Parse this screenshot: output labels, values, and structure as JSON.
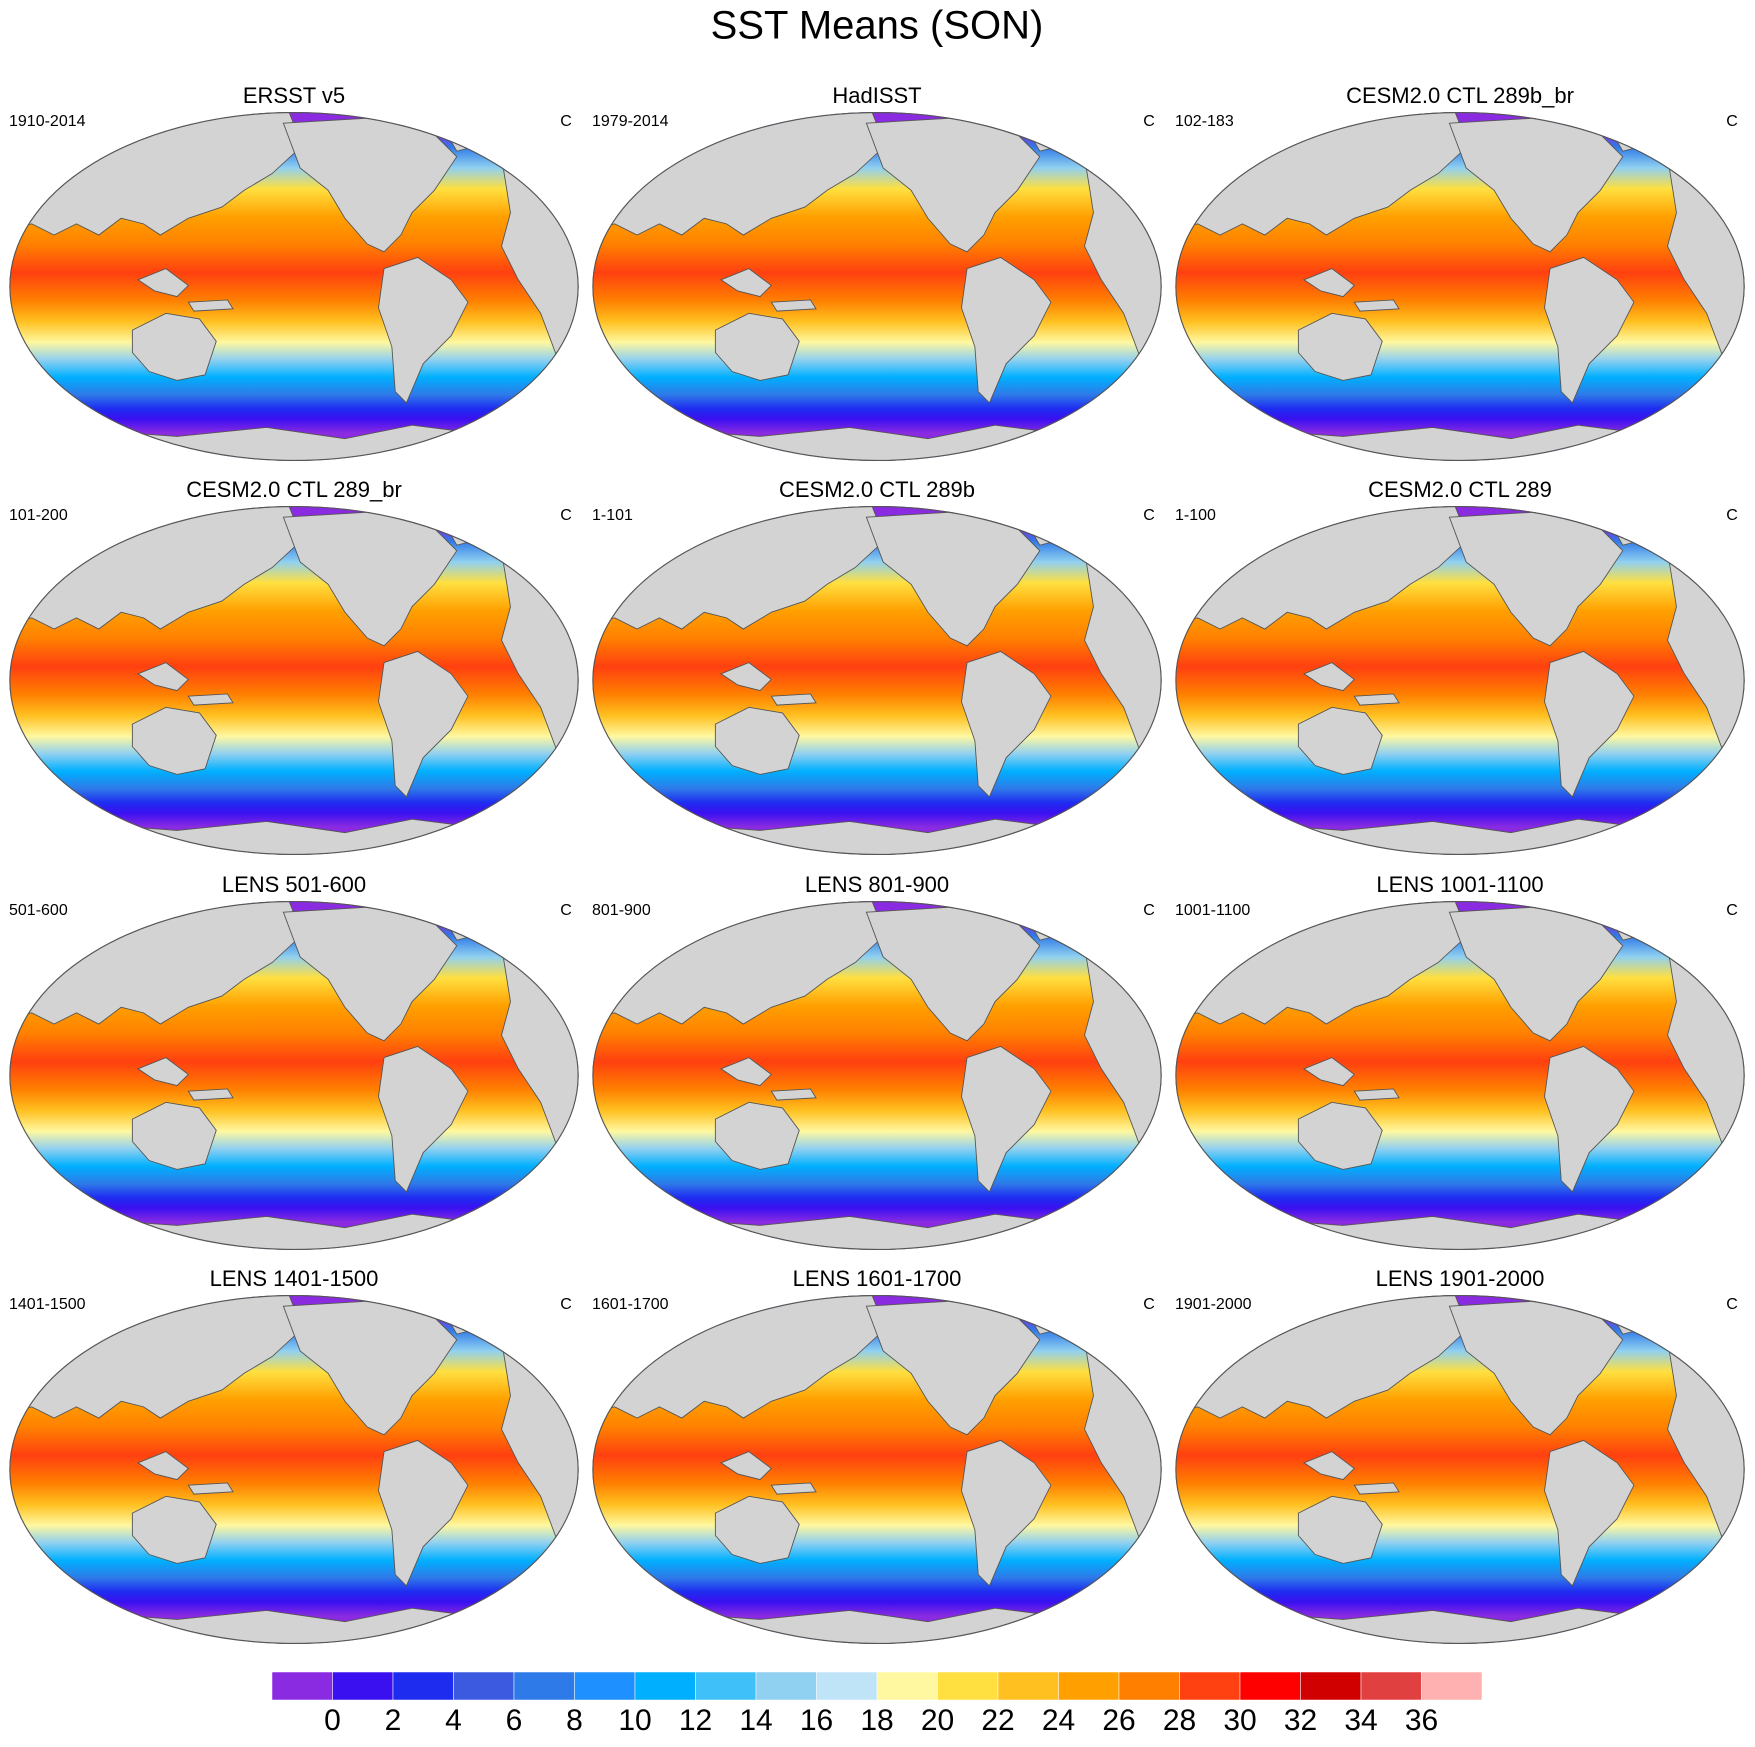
{
  "title": "SST Means (SON)",
  "panels": [
    {
      "title": "ERSST v5",
      "period": "1910-2014",
      "units": "C"
    },
    {
      "title": "HadISST",
      "period": "1979-2014",
      "units": "C"
    },
    {
      "title": "CESM2.0 CTL 289b_br",
      "period": "102-183",
      "units": "C"
    },
    {
      "title": "CESM2.0 CTL 289_br",
      "period": "101-200",
      "units": "C"
    },
    {
      "title": "CESM2.0 CTL 289b",
      "period": "1-101",
      "units": "C"
    },
    {
      "title": "CESM2.0 CTL 289",
      "period": "1-100",
      "units": "C"
    },
    {
      "title": "LENS 501-600",
      "period": "501-600",
      "units": "C"
    },
    {
      "title": "LENS 801-900",
      "period": "801-900",
      "units": "C"
    },
    {
      "title": "LENS 1001-1100",
      "period": "1001-1100",
      "units": "C"
    },
    {
      "title": "LENS 1401-1500",
      "period": "1401-1500",
      "units": "C"
    },
    {
      "title": "LENS 1601-1700",
      "period": "1601-1700",
      "units": "C"
    },
    {
      "title": "LENS 1901-2000",
      "period": "1901-2000",
      "units": "C"
    }
  ],
  "colorbar": {
    "levels": [
      0,
      2,
      4,
      6,
      8,
      10,
      12,
      14,
      16,
      18,
      20,
      22,
      24,
      26,
      28,
      30,
      32,
      34,
      36
    ],
    "colors": [
      "#8a2be2",
      "#3a10f0",
      "#1e2cf0",
      "#3c5ae0",
      "#2e7ae8",
      "#1e90ff",
      "#00b0ff",
      "#40c0f8",
      "#90d0f0",
      "#bfe4f8",
      "#fff8a0",
      "#ffe040",
      "#ffc020",
      "#ffa000",
      "#ff8000",
      "#ff4010",
      "#ff0000",
      "#d00000",
      "#e04040",
      "#ffb0b0"
    ]
  }
}
